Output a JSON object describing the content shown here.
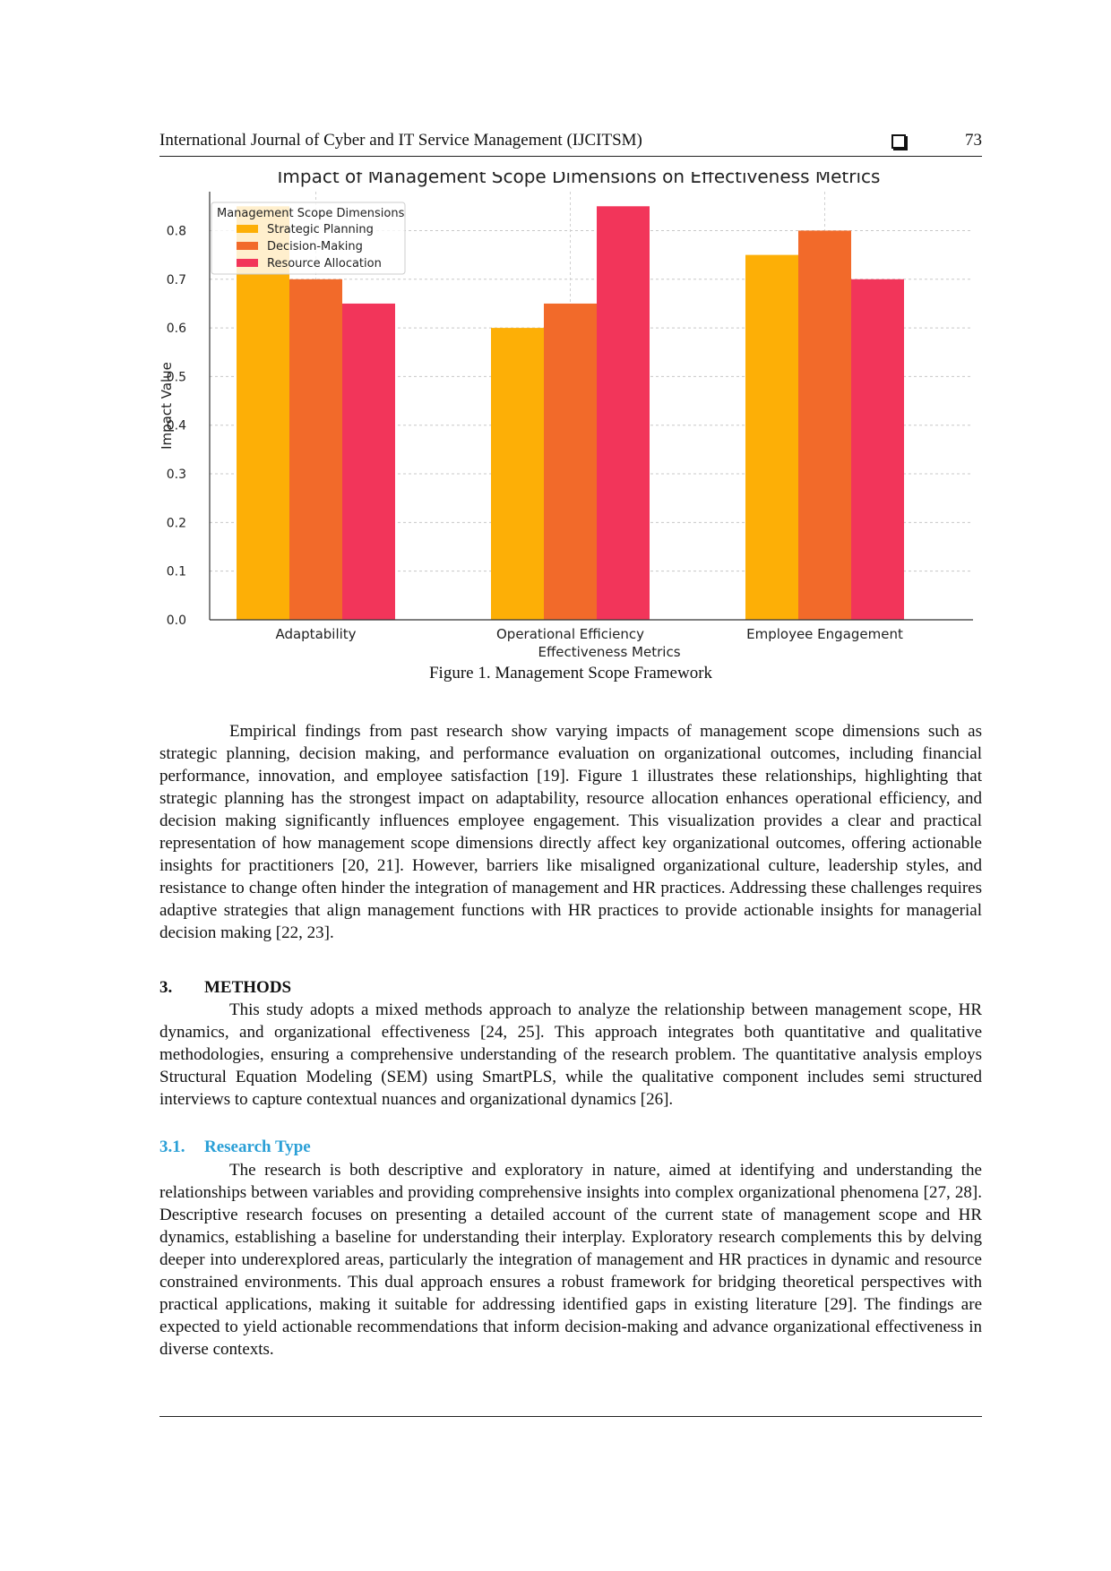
{
  "header": {
    "journal": "International Journal of Cyber and IT Service Management (IJCITSM)",
    "page_number": "73",
    "box_icon": "square-box-icon"
  },
  "figure": {
    "caption": "Figure 1. Management Scope Framework"
  },
  "chart_data": {
    "type": "bar",
    "title": "Impact of Management Scope Dimensions on Effectiveness Metrics",
    "xlabel": "Effectiveness Metrics",
    "ylabel": "Impact Value",
    "ylim": [
      0,
      0.88
    ],
    "yticks": [
      "0.0",
      "0.1",
      "0.2",
      "0.3",
      "0.4",
      "0.5",
      "0.6",
      "0.7",
      "0.8"
    ],
    "grid": true,
    "legend_title": "Management Scope Dimensions",
    "legend_position": "top-left",
    "categories": [
      "Adaptability",
      "Operational Efficiency",
      "Employee Engagement"
    ],
    "series": [
      {
        "name": "Strategic Planning",
        "color": "#FDAF06",
        "values": [
          0.85,
          0.6,
          0.75
        ]
      },
      {
        "name": "Decision-Making",
        "color": "#F26A2A",
        "values": [
          0.7,
          0.65,
          0.8
        ]
      },
      {
        "name": "Resource Allocation",
        "color": "#F2355A",
        "values": [
          0.65,
          0.85,
          0.7
        ]
      }
    ]
  },
  "paragraph1": "Empirical findings from past research show varying impacts of management scope dimensions such as strategic planning, decision making, and performance evaluation on organizational outcomes, including financial performance, innovation, and employee satisfaction [19]. Figure 1 illustrates these relationships, highlighting that strategic planning has the strongest impact on adaptability, resource allocation enhances operational efficiency, and decision making significantly influences employee engagement. This visualization provides a clear and practical representation of how management scope dimensions directly affect key organizational outcomes, offering actionable insights for practitioners [20, 21]. However, barriers like misaligned organizational culture, leadership styles, and resistance to change often hinder the integration of management and HR practices. Addressing these challenges requires adaptive strategies that align management functions with HR practices to provide actionable insights for managerial decision making [22, 23].",
  "section3": {
    "number": "3.",
    "title": "METHODS",
    "paragraph": "This study adopts a mixed methods approach to analyze the relationship between management scope, HR dynamics, and organizational effectiveness [24, 25]. This approach integrates both quantitative and qualitative methodologies, ensuring a comprehensive understanding of the research problem. The quantitative analysis employs Structural Equation Modeling (SEM) using SmartPLS, while the qualitative component includes semi structured interviews to capture contextual nuances and organizational dynamics [26]."
  },
  "section31": {
    "number": "3.1.",
    "title": "Research Type",
    "paragraph": "The research is both descriptive and exploratory in nature, aimed at identifying and understanding the relationships between variables and providing comprehensive insights into complex organizational phenomena [27, 28]. Descriptive research focuses on presenting a detailed account of the current state of management scope and HR dynamics, establishing a baseline for understanding their interplay. Exploratory research complements this by delving deeper into underexplored areas, particularly the integration of management and HR practices in dynamic and resource constrained environments. This dual approach ensures a robust framework for bridging theoretical perspectives with practical applications, making it suitable for addressing identified gaps in existing literature [29]. The findings are expected to yield actionable recommendations that inform decision-making and advance organizational effectiveness in diverse contexts."
  }
}
